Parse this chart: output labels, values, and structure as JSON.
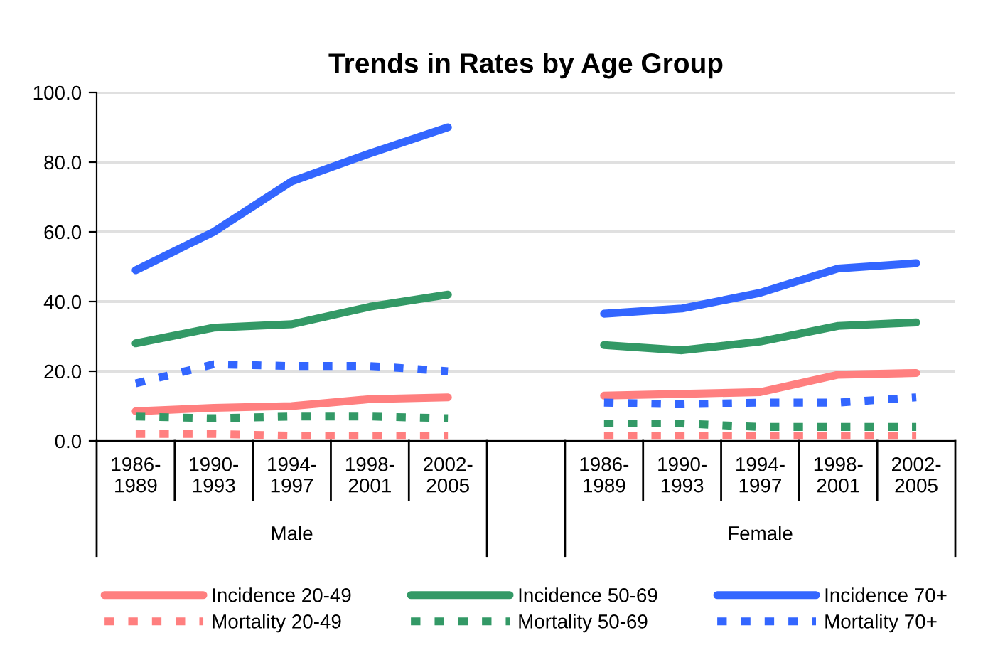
{
  "chart_data": {
    "type": "line",
    "title": "Trends in Rates by Age Group",
    "categories": [
      "1986-\n1989",
      "1990-\n1993",
      "1994-\n1997",
      "1998-\n2001",
      "2002-\n2005",
      null,
      "1986-\n1989",
      "1990-\n1993",
      "1994-\n1997",
      "1998-\n2001",
      "2002-\n2005"
    ],
    "series": [
      {
        "name": "Incidence 20-49",
        "color": "#ff7f7f",
        "line_style": "solid",
        "values": [
          8.5,
          9.5,
          10,
          12,
          12.5,
          null,
          13,
          13.5,
          14,
          19,
          19.5
        ]
      },
      {
        "name": "Mortality 20-49",
        "color": "#ff7f7f",
        "line_style": "dashed",
        "values": [
          2,
          2,
          1.5,
          1.5,
          1.5,
          null,
          1.5,
          1.5,
          1.5,
          1.5,
          1.5
        ]
      },
      {
        "name": "Incidence 50-69",
        "color": "#339966",
        "line_style": "solid",
        "values": [
          28,
          32.5,
          33.5,
          38.5,
          42,
          null,
          27.5,
          26,
          28.5,
          33,
          34
        ]
      },
      {
        "name": "Mortality 50-69",
        "color": "#339966",
        "line_style": "dashed",
        "values": [
          7,
          6.5,
          7,
          7,
          6.5,
          null,
          5,
          5,
          4,
          4,
          4
        ]
      },
      {
        "name": "Incidence 70+",
        "color": "#3366ff",
        "line_style": "solid",
        "values": [
          49,
          60,
          74.5,
          82.5,
          90,
          null,
          36.5,
          38,
          42.5,
          49.5,
          51
        ]
      },
      {
        "name": "Mortality 70+",
        "color": "#3366ff",
        "line_style": "dashed",
        "values": [
          16.5,
          22,
          21.5,
          21.5,
          20,
          null,
          11,
          10.5,
          11,
          11,
          12.5
        ]
      }
    ],
    "annotations": [
      "Male",
      "Female"
    ],
    "ylim": [
      0,
      100
    ],
    "yticks": [
      {
        "value": 0,
        "label": "0.0"
      },
      {
        "value": 20,
        "label": "20.0"
      },
      {
        "value": 40,
        "label": "40.0"
      },
      {
        "value": 60,
        "label": "60.0"
      },
      {
        "value": 80,
        "label": "80.0"
      },
      {
        "value": 100,
        "label": "100.0"
      }
    ],
    "grid": "y",
    "legend": "bottom",
    "marker": "none"
  }
}
